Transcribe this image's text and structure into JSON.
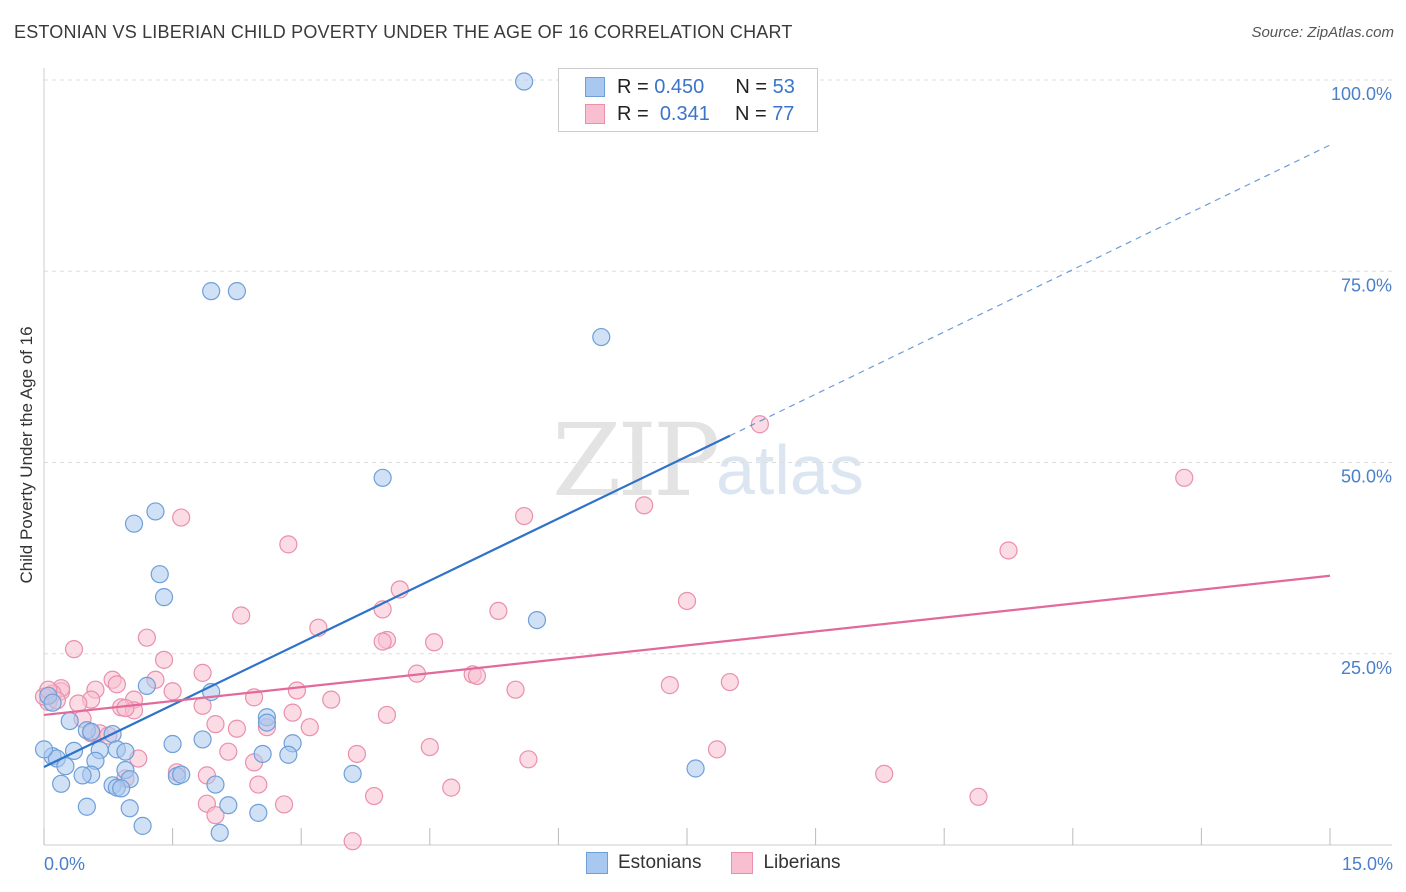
{
  "title": "ESTONIAN VS LIBERIAN CHILD POVERTY UNDER THE AGE OF 16 CORRELATION CHART",
  "source": "Source: ZipAtlas.com",
  "watermark": {
    "zip": "ZIP",
    "atlas": "atlas"
  },
  "legend": {
    "estonians": {
      "r_label": "R =",
      "r_value": "0.450",
      "n_label": "N =",
      "n_value": "53"
    },
    "liberians": {
      "r_label": "R =",
      "r_value": "0.341",
      "n_label": "N =",
      "n_value": "77"
    }
  },
  "bottom_legend": {
    "estonians": "Estonians",
    "liberians": "Liberians"
  },
  "colors": {
    "estonians_fill": "#a9c8ef",
    "estonians_stroke": "#6f9fd8",
    "estonians_line": "#2f72c9",
    "liberians_fill": "#f7bfd0",
    "liberians_stroke": "#ea8fae",
    "liberians_line": "#e2699a",
    "tick_label": "#4a7fc9",
    "grid": "#dddddd"
  },
  "chart_data": {
    "type": "scatter",
    "title": "ESTONIAN VS LIBERIAN CHILD POVERTY UNDER THE AGE OF 16 CORRELATION CHART",
    "xlabel": "",
    "ylabel": "Child Poverty Under the Age of 16",
    "xlim": [
      0,
      15
    ],
    "ylim": [
      0,
      100
    ],
    "x_tick_labels": [
      "0.0%",
      "15.0%"
    ],
    "y_tick_labels": [
      "100.0%",
      "75.0%",
      "50.0%",
      "25.0%"
    ],
    "y_ticks": [
      100,
      75,
      50,
      25
    ],
    "grid": true,
    "legend_position": "top-center",
    "series": [
      {
        "name": "Estonians",
        "points": [
          [
            5.6,
            99.8
          ],
          [
            1.95,
            72.4
          ],
          [
            2.25,
            72.4
          ],
          [
            6.5,
            66.4
          ],
          [
            3.95,
            48.0
          ],
          [
            1.3,
            43.6
          ],
          [
            1.05,
            42.0
          ],
          [
            1.35,
            35.4
          ],
          [
            1.4,
            32.4
          ],
          [
            5.75,
            29.4
          ],
          [
            1.2,
            20.8
          ],
          [
            1.95,
            20.0
          ],
          [
            0.05,
            19.5
          ],
          [
            0.1,
            18.6
          ],
          [
            2.6,
            16.7
          ],
          [
            2.6,
            16.0
          ],
          [
            0.3,
            16.2
          ],
          [
            0.5,
            15.0
          ],
          [
            0.8,
            14.5
          ],
          [
            0.55,
            14.8
          ],
          [
            1.85,
            13.8
          ],
          [
            1.5,
            13.2
          ],
          [
            2.9,
            13.3
          ],
          [
            0.35,
            12.3
          ],
          [
            0.65,
            12.4
          ],
          [
            0.85,
            12.5
          ],
          [
            0.95,
            12.2
          ],
          [
            0.1,
            11.6
          ],
          [
            2.55,
            11.9
          ],
          [
            2.85,
            11.8
          ],
          [
            0.15,
            11.3
          ],
          [
            0.25,
            10.3
          ],
          [
            0.6,
            11.0
          ],
          [
            0.95,
            9.8
          ],
          [
            0.55,
            9.2
          ],
          [
            1.55,
            9.0
          ],
          [
            1.6,
            9.2
          ],
          [
            0.45,
            9.1
          ],
          [
            3.6,
            9.3
          ],
          [
            7.6,
            10.0
          ],
          [
            1.0,
            8.6
          ],
          [
            0.8,
            7.8
          ],
          [
            0.85,
            7.5
          ],
          [
            0.2,
            8.0
          ],
          [
            2.0,
            7.9
          ],
          [
            0.9,
            7.4
          ],
          [
            0.5,
            5.0
          ],
          [
            1.0,
            4.8
          ],
          [
            2.15,
            5.2
          ],
          [
            2.5,
            4.2
          ],
          [
            1.15,
            2.5
          ],
          [
            2.05,
            1.6
          ],
          [
            0.0,
            12.5
          ]
        ],
        "trend": {
          "x": [
            0,
            8.0
          ],
          "y": [
            10.2,
            53.5
          ],
          "dashed_extension": {
            "x": [
              8.0,
              15.0
            ],
            "y": [
              53.5,
              91.5
            ]
          }
        }
      },
      {
        "name": "Liberians",
        "points": [
          [
            8.35,
            55.0
          ],
          [
            13.3,
            48.0
          ],
          [
            7.0,
            44.4
          ],
          [
            5.6,
            43.0
          ],
          [
            1.6,
            42.8
          ],
          [
            2.85,
            39.3
          ],
          [
            11.25,
            38.5
          ],
          [
            4.15,
            33.4
          ],
          [
            7.5,
            31.9
          ],
          [
            5.3,
            30.6
          ],
          [
            3.95,
            30.8
          ],
          [
            2.3,
            30.0
          ],
          [
            3.2,
            28.4
          ],
          [
            1.2,
            27.1
          ],
          [
            4.0,
            26.8
          ],
          [
            3.95,
            26.6
          ],
          [
            4.55,
            26.5
          ],
          [
            0.35,
            25.6
          ],
          [
            1.4,
            24.2
          ],
          [
            1.85,
            22.5
          ],
          [
            5.0,
            22.3
          ],
          [
            5.05,
            22.1
          ],
          [
            4.35,
            22.4
          ],
          [
            0.8,
            21.6
          ],
          [
            1.3,
            21.6
          ],
          [
            8.0,
            21.3
          ],
          [
            0.85,
            21.0
          ],
          [
            7.3,
            20.9
          ],
          [
            2.95,
            20.2
          ],
          [
            1.5,
            20.1
          ],
          [
            0.6,
            20.3
          ],
          [
            5.5,
            20.3
          ],
          [
            0.2,
            20.1
          ],
          [
            1.05,
            19.0
          ],
          [
            2.45,
            19.3
          ],
          [
            0.55,
            19.0
          ],
          [
            0.05,
            18.7
          ],
          [
            3.35,
            19.0
          ],
          [
            0.4,
            18.5
          ],
          [
            1.85,
            18.2
          ],
          [
            0.9,
            18.0
          ],
          [
            1.05,
            17.6
          ],
          [
            0.95,
            17.9
          ],
          [
            2.9,
            17.3
          ],
          [
            4.0,
            17.0
          ],
          [
            0.45,
            16.5
          ],
          [
            2.0,
            15.8
          ],
          [
            2.25,
            15.2
          ],
          [
            2.6,
            15.4
          ],
          [
            3.1,
            15.4
          ],
          [
            0.55,
            14.6
          ],
          [
            0.65,
            14.6
          ],
          [
            0.75,
            14.3
          ],
          [
            0.2,
            20.5
          ],
          [
            0.1,
            19.8
          ],
          [
            4.5,
            12.8
          ],
          [
            7.85,
            12.5
          ],
          [
            2.15,
            12.2
          ],
          [
            3.65,
            11.9
          ],
          [
            1.1,
            11.3
          ],
          [
            2.45,
            10.8
          ],
          [
            5.65,
            11.2
          ],
          [
            1.55,
            9.5
          ],
          [
            1.9,
            9.1
          ],
          [
            0.95,
            8.7
          ],
          [
            9.8,
            9.3
          ],
          [
            2.5,
            7.9
          ],
          [
            4.75,
            7.5
          ],
          [
            3.85,
            6.4
          ],
          [
            10.9,
            6.3
          ],
          [
            1.9,
            5.4
          ],
          [
            2.8,
            5.3
          ],
          [
            2.0,
            3.9
          ],
          [
            3.6,
            0.5
          ],
          [
            0.0,
            19.4
          ],
          [
            0.15,
            18.9
          ],
          [
            0.05,
            20.3
          ]
        ],
        "trend": {
          "x": [
            0,
            15.0
          ],
          "y": [
            17.0,
            35.2
          ]
        }
      }
    ]
  }
}
